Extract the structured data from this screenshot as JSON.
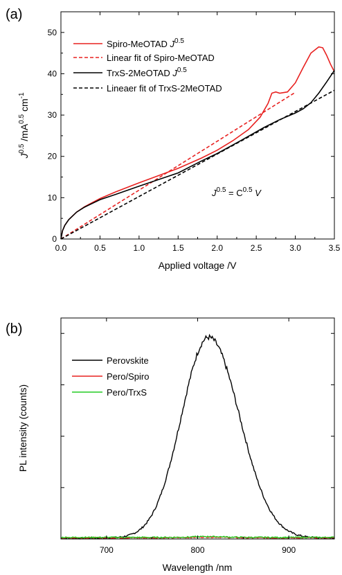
{
  "chart_data": [
    {
      "panel_label": "(a)",
      "type": "line",
      "xlabel": "Applied voltage /V",
      "ylabel_base": "J",
      "ylabel_sup": "0.5",
      "ylabel_mid": " /mA",
      "ylabel_sup2": "0.5",
      "ylabel_end": " cm",
      "ylabel_sup3": "-1",
      "xlim": [
        0,
        3.5
      ],
      "ylim": [
        0,
        55
      ],
      "xticks": [
        "0.0",
        "0.5",
        "1.0",
        "1.5",
        "2.0",
        "2.5",
        "3.0",
        "3.5"
      ],
      "yticks": [
        "0",
        "10",
        "20",
        "30",
        "40",
        "50"
      ],
      "annotation": {
        "j": "J",
        "sup1": "0.5",
        "eq": " = C",
        "sup2": "0.5",
        "v": "V"
      },
      "series": [
        {
          "name": "Spiro-MeOTAD",
          "name_italic": "J",
          "name_sup": "0.5",
          "color": "#e8201f",
          "dash": "solid",
          "x": [
            0.0,
            0.02,
            0.05,
            0.1,
            0.2,
            0.3,
            0.5,
            0.7,
            1.0,
            1.3,
            1.5,
            1.8,
            2.0,
            2.2,
            2.4,
            2.55,
            2.65,
            2.7,
            2.75,
            2.8,
            2.9,
            3.0,
            3.1,
            3.2,
            3.3,
            3.35,
            3.4,
            3.45,
            3.5
          ],
          "y": [
            0.0,
            2.0,
            3.3,
            4.7,
            6.5,
            7.8,
            9.8,
            11.4,
            13.6,
            15.7,
            17.1,
            19.6,
            21.5,
            23.8,
            26.5,
            29.5,
            32.8,
            35.3,
            35.6,
            35.3,
            35.6,
            37.8,
            41.5,
            45.0,
            46.5,
            46.3,
            44.5,
            42.3,
            40.5
          ]
        },
        {
          "name": "Linear fit of Spiro-MeOTAD",
          "color": "#e8201f",
          "dash": "dashed",
          "x": [
            0.0,
            3.0
          ],
          "y": [
            0.0,
            35.5
          ]
        },
        {
          "name": "TrxS-2MeOTAD",
          "name_italic": "J",
          "name_sup": "0.5",
          "color": "#000000",
          "dash": "solid",
          "x": [
            0.0,
            0.02,
            0.05,
            0.1,
            0.2,
            0.3,
            0.5,
            0.7,
            1.0,
            1.3,
            1.5,
            1.8,
            2.0,
            2.3,
            2.6,
            2.8,
            3.0,
            3.1,
            3.2,
            3.3,
            3.4,
            3.5
          ],
          "y": [
            0.0,
            2.0,
            3.3,
            4.7,
            6.5,
            7.7,
            9.5,
            10.8,
            12.8,
            14.7,
            16.0,
            18.9,
            20.7,
            23.8,
            27.0,
            28.9,
            30.5,
            31.5,
            33.0,
            35.3,
            38.0,
            40.8
          ]
        },
        {
          "name": "Lineaer fit of TrxS-2MeOTAD",
          "color": "#000000",
          "dash": "dashed",
          "x": [
            0.0,
            3.5
          ],
          "y": [
            0.0,
            36.0
          ]
        }
      ]
    },
    {
      "panel_label": "(b)",
      "type": "line",
      "xlabel": "Wavelength /nm",
      "ylabel": "PL intensity (counts)",
      "xlim": [
        650,
        950
      ],
      "ylim": [
        0,
        1.1
      ],
      "xticks": [
        "700",
        "800",
        "900"
      ],
      "series": [
        {
          "name": "Perovskite",
          "color": "#000000",
          "shape": "peak",
          "peak_x": 812,
          "peak_y": 1.0,
          "width_left": 30,
          "width_right": 34
        },
        {
          "name": "Pero/Spiro",
          "color": "#e8201f",
          "shape": "flat",
          "level": 0.006
        },
        {
          "name": "Pero/TrxS",
          "color": "#22cc22",
          "shape": "flat",
          "level": 0.008
        }
      ]
    }
  ]
}
